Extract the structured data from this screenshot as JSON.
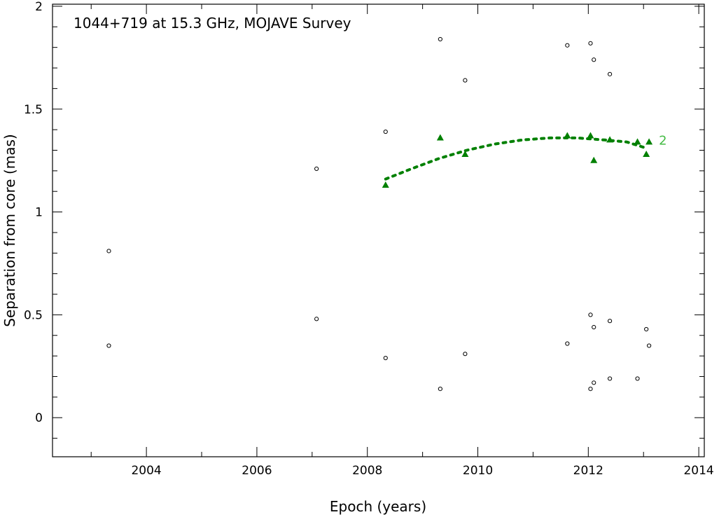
{
  "chart_data": {
    "type": "scatter",
    "title": "1044+719 at 15.3 GHz, MOJAVE Survey",
    "xlabel": "Epoch (years)",
    "ylabel": "Separation from core (mas)",
    "xlim": [
      2002.3,
      2014.1
    ],
    "ylim": [
      -0.19,
      2.01
    ],
    "xticks": [
      2004,
      2006,
      2008,
      2010,
      2012,
      2014
    ],
    "yticks": [
      0,
      0.5,
      1,
      1.5,
      2
    ],
    "ytick_labels": [
      "0",
      "0.5",
      "1",
      "1.5",
      "2"
    ],
    "grid": false,
    "highlight_color": "#008000",
    "highlight_label_color": "#44bb44",
    "series": [
      {
        "marker": "circle-open",
        "color": "#000000",
        "points": [
          [
            2003.32,
            0.81
          ],
          [
            2003.32,
            0.35
          ],
          [
            2007.08,
            1.21
          ],
          [
            2007.08,
            0.48
          ],
          [
            2008.33,
            1.39
          ],
          [
            2008.33,
            0.29
          ],
          [
            2009.32,
            1.84
          ],
          [
            2009.32,
            0.14
          ],
          [
            2009.77,
            1.64
          ],
          [
            2009.77,
            0.31
          ],
          [
            2011.62,
            1.81
          ],
          [
            2011.62,
            0.36
          ],
          [
            2012.04,
            1.82
          ],
          [
            2012.04,
            0.5
          ],
          [
            2012.04,
            0.14
          ],
          [
            2012.1,
            1.74
          ],
          [
            2012.1,
            0.44
          ],
          [
            2012.1,
            0.17
          ],
          [
            2012.39,
            1.67
          ],
          [
            2012.39,
            0.47
          ],
          [
            2012.39,
            0.19
          ],
          [
            2012.89,
            0.19
          ],
          [
            2013.05,
            0.43
          ],
          [
            2013.1,
            0.35
          ]
        ]
      },
      {
        "name": "2",
        "marker": "triangle-filled",
        "color": "#008000",
        "points": [
          [
            2008.33,
            1.13
          ],
          [
            2009.32,
            1.36
          ],
          [
            2009.77,
            1.28
          ],
          [
            2011.62,
            1.37
          ],
          [
            2012.04,
            1.37
          ],
          [
            2012.1,
            1.25
          ],
          [
            2012.39,
            1.35
          ],
          [
            2012.89,
            1.34
          ],
          [
            2013.05,
            1.28
          ],
          [
            2013.1,
            1.34
          ]
        ],
        "fit": [
          [
            2008.33,
            1.16
          ],
          [
            2008.8,
            1.21
          ],
          [
            2009.3,
            1.26
          ],
          [
            2009.8,
            1.3
          ],
          [
            2010.3,
            1.33
          ],
          [
            2010.8,
            1.35
          ],
          [
            2011.3,
            1.36
          ],
          [
            2011.8,
            1.36
          ],
          [
            2012.3,
            1.35
          ],
          [
            2012.7,
            1.34
          ],
          [
            2013.05,
            1.31
          ]
        ]
      }
    ]
  }
}
